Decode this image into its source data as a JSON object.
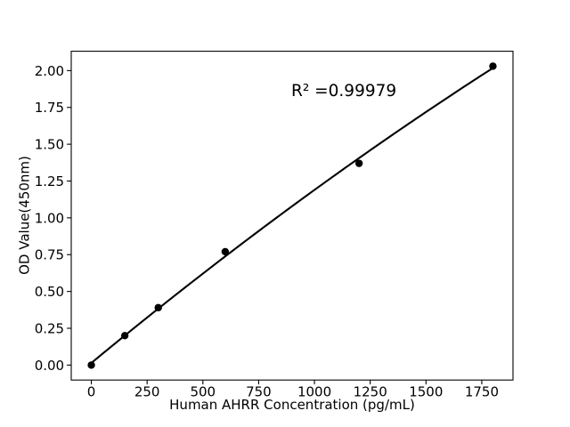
{
  "chart_data": {
    "type": "scatter",
    "title": "",
    "xlabel": "Human AHRR Concentration (pg/mL)",
    "ylabel": "OD Value(450nm)",
    "x": [
      0,
      150,
      300,
      600,
      1200,
      1800
    ],
    "y": [
      0.0,
      0.2,
      0.39,
      0.77,
      1.37,
      2.03
    ],
    "xticks": [
      0,
      250,
      500,
      750,
      1000,
      1250,
      1500,
      1750
    ],
    "yticks": [
      0.0,
      0.25,
      0.5,
      0.75,
      1.0,
      1.25,
      1.5,
      1.75,
      2.0
    ],
    "xlim": [
      -90,
      1890
    ],
    "ylim": [
      -0.1015,
      2.1315
    ],
    "grid": false,
    "legend": false,
    "marker": {
      "shape": "circle",
      "color": "#000000"
    },
    "line": {
      "fit": "quadratic",
      "color": "#000000"
    },
    "annotation": {
      "text": "R² =0.99979",
      "r_squared": 0.99979
    },
    "background": "#ffffff",
    "axis_color": "#000000"
  }
}
